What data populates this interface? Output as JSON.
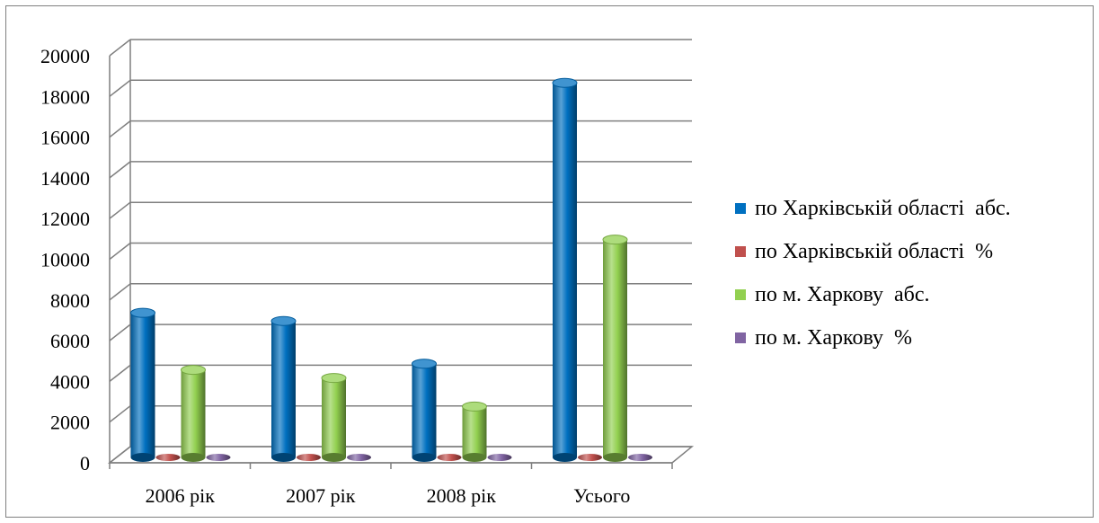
{
  "chart_data": {
    "type": "bar",
    "categories": [
      "2006 рік",
      "2007 рік",
      "2008 рік",
      "Усього"
    ],
    "series": [
      {
        "name": "по Харківській області  абс.",
        "color": "#0070c0",
        "values": [
          7100,
          6700,
          4600,
          18400
        ]
      },
      {
        "name": "по Харківській області  %",
        "color": "#c0504d",
        "values": [
          0,
          0,
          0,
          0
        ]
      },
      {
        "name": "по м. Харкову  абс.",
        "color": "#92d050",
        "values": [
          4300,
          3900,
          2500,
          10700
        ]
      },
      {
        "name": "по м. Харкову  %",
        "color": "#8064a2",
        "values": [
          0,
          0,
          0,
          0
        ]
      }
    ],
    "ylim": [
      0,
      20000
    ],
    "yticks": [
      "0",
      "2000",
      "4000",
      "6000",
      "8000",
      "10000",
      "12000",
      "14000",
      "16000",
      "18000",
      "20000"
    ],
    "grid": true,
    "legend": "right",
    "style": "3d-cylinder"
  }
}
